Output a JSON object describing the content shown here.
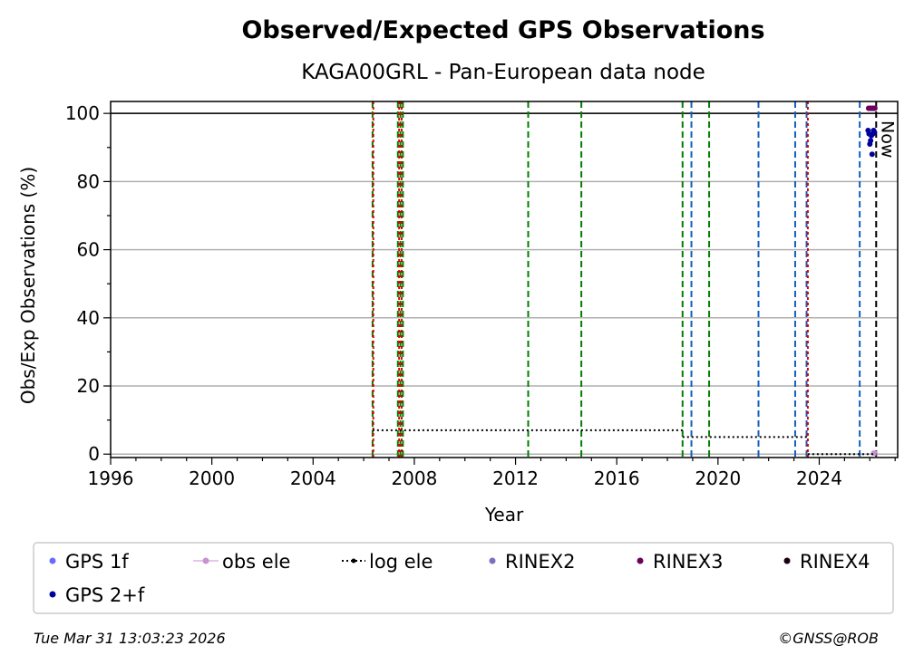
{
  "chart_data": {
    "type": "scatter",
    "title": "Observed/Expected GPS Observations",
    "subtitle": "KAGA00GRL - Pan-European data node",
    "xlabel": "Year",
    "ylabel": "Obs/Exp Observations (%)",
    "xlim": [
      1996,
      2027.1
    ],
    "ylim": [
      -1,
      103.5
    ],
    "x_ticks": [
      1996,
      2000,
      2004,
      2008,
      2012,
      2016,
      2020,
      2024
    ],
    "y_ticks": [
      0,
      20,
      40,
      60,
      80,
      100
    ],
    "grid": "horizontal",
    "reference_line_y": 100,
    "now": {
      "x": 2026.25,
      "label": "Now"
    },
    "event_lines": {
      "green": [
        2006.35,
        2007.35,
        2007.45,
        2007.55,
        2012.5,
        2014.6,
        2018.6,
        2019.65
      ],
      "red": [
        2006.38,
        2007.4,
        2007.5,
        2023.55
      ],
      "blue": [
        2018.95,
        2021.6,
        2023.05,
        2023.5,
        2025.6
      ]
    },
    "series": [
      {
        "name": "GPS 1f",
        "color": "#6a6aff",
        "points": []
      },
      {
        "name": "obs ele",
        "color": "#c990d4",
        "points": [
          [
            2026.15,
            0.3
          ],
          [
            2026.2,
            0.3
          ]
        ]
      },
      {
        "name": "log ele",
        "color": "#000000",
        "steps": [
          [
            2006.35,
            2018.6,
            7
          ],
          [
            2018.6,
            2023.55,
            5
          ],
          [
            2023.55,
            2026.25,
            0
          ]
        ]
      },
      {
        "name": "RINEX2",
        "color": "#7b70c0",
        "points": []
      },
      {
        "name": "RINEX3",
        "color": "#6c005f",
        "points": [
          [
            2025.95,
            101.5
          ],
          [
            2026.0,
            101.5
          ],
          [
            2026.05,
            101.5
          ],
          [
            2026.1,
            101.5
          ],
          [
            2026.15,
            101.5
          ],
          [
            2026.2,
            101.5
          ]
        ]
      },
      {
        "name": "RINEX4",
        "color": "#1a0012",
        "points": []
      },
      {
        "name": "GPS 2+f",
        "color": "#00009e",
        "points": [
          [
            2025.93,
            95
          ],
          [
            2025.97,
            94
          ],
          [
            2026.0,
            91
          ],
          [
            2026.03,
            92
          ],
          [
            2026.06,
            93.5
          ],
          [
            2026.09,
            88
          ],
          [
            2026.12,
            94
          ],
          [
            2026.15,
            95
          ],
          [
            2026.18,
            94.5
          ]
        ]
      }
    ],
    "legend": {
      "placement": "below",
      "columns": 6
    }
  },
  "footer": {
    "timestamp": "Tue Mar 31 13:03:23 2026",
    "credit": "©GNSS@ROB"
  }
}
